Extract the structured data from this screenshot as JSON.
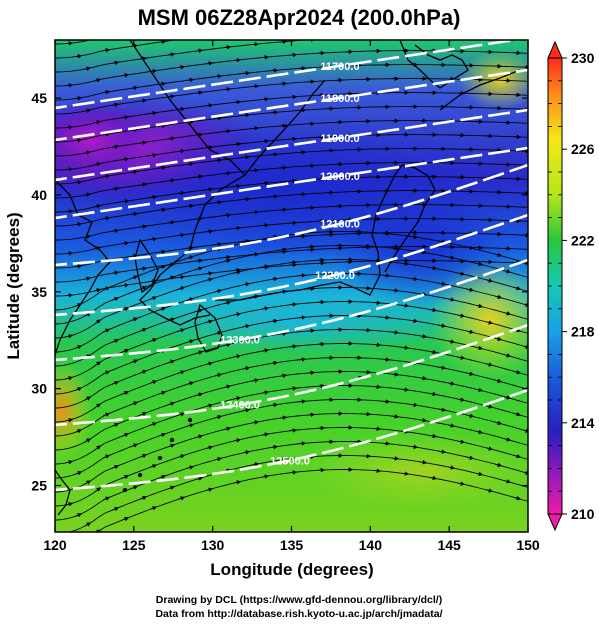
{
  "title": "MSM 06Z28Apr2024 (200.0hPa)",
  "x_axis_title": "Longitude (degrees)",
  "y_axis_title": "Latitude  (degrees)",
  "x_ticks": [
    "120",
    "125",
    "130",
    "135",
    "140",
    "145",
    "150"
  ],
  "y_ticks": [
    "25",
    "30",
    "35",
    "40",
    "45"
  ],
  "colorbar": {
    "min": 210,
    "max": 230,
    "labels": [
      "230",
      "226",
      "222",
      "218",
      "214",
      "210"
    ],
    "colors": [
      "#ff1a1a",
      "#ff7a1a",
      "#ffc21a",
      "#f5ef1a",
      "#c0e81a",
      "#5cd71a",
      "#14c83c",
      "#14c8a0",
      "#14c8e8",
      "#1a8ce8",
      "#1a4ad8",
      "#1e20c0",
      "#5a1ab8",
      "#a01ab4",
      "#e01aa8"
    ]
  },
  "contours": [
    {
      "label": "11700.0"
    },
    {
      "label": "11800.0"
    },
    {
      "label": "11900.0"
    },
    {
      "label": "12000.0"
    },
    {
      "label": "12100.0"
    },
    {
      "label": "12200.0"
    },
    {
      "label": "12300.0"
    },
    {
      "label": "12400.0"
    },
    {
      "label": "12500.0"
    }
  ],
  "credits": {
    "line1": "Drawing by DCL (https://www.gfd-dennou.org/library/dcl/)",
    "line2": "Data from http://database.rish.kyoto-u.ac.jp/arch/jmadata/"
  }
}
